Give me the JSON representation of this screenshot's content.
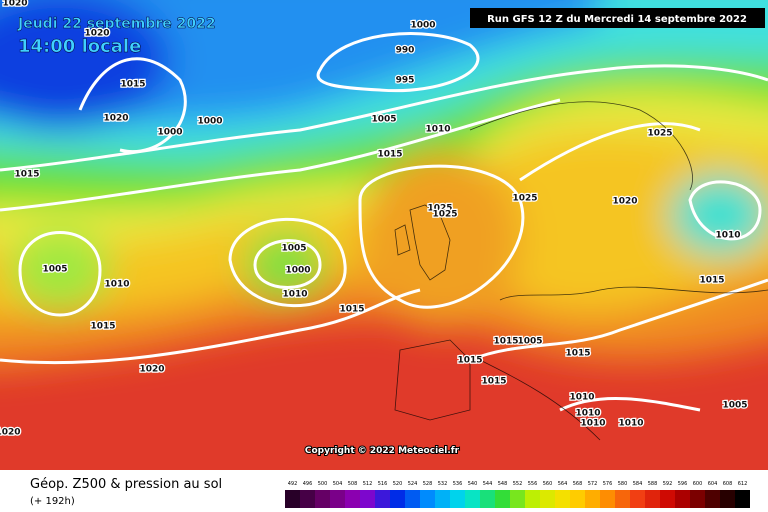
{
  "header": {
    "date": "Jeudi 22 septembre 2022",
    "time": "14:00 locale",
    "run": "Run GFS 12 Z du Mercredi 14 septembre 2022"
  },
  "map": {
    "copyright": "Copyright © 2022 Meteociel.fr",
    "isobar_labels": [
      "1020",
      "1020",
      "1000",
      "990",
      "995",
      "1015",
      "1020",
      "1000",
      "1000",
      "1005",
      "1010",
      "1015",
      "1025",
      "1015",
      "1025",
      "1025",
      "1025",
      "1020",
      "1010",
      "1005",
      "1000",
      "1010",
      "1005",
      "1010",
      "1015",
      "1015",
      "1015",
      "1005",
      "1015",
      "1015",
      "1015",
      "1015",
      "1020",
      "1010",
      "1010",
      "1010",
      "1010",
      "1005",
      "1020"
    ]
  },
  "legend": {
    "title": "Géop. Z500 & pression au sol",
    "subtitle": "(+ 192h)",
    "scale": [
      492,
      496,
      500,
      504,
      508,
      512,
      516,
      520,
      524,
      528,
      532,
      536,
      540,
      544,
      548,
      552,
      556,
      560,
      564,
      568,
      572,
      576,
      580,
      584,
      588,
      592,
      596,
      600,
      604,
      608,
      612
    ]
  }
}
